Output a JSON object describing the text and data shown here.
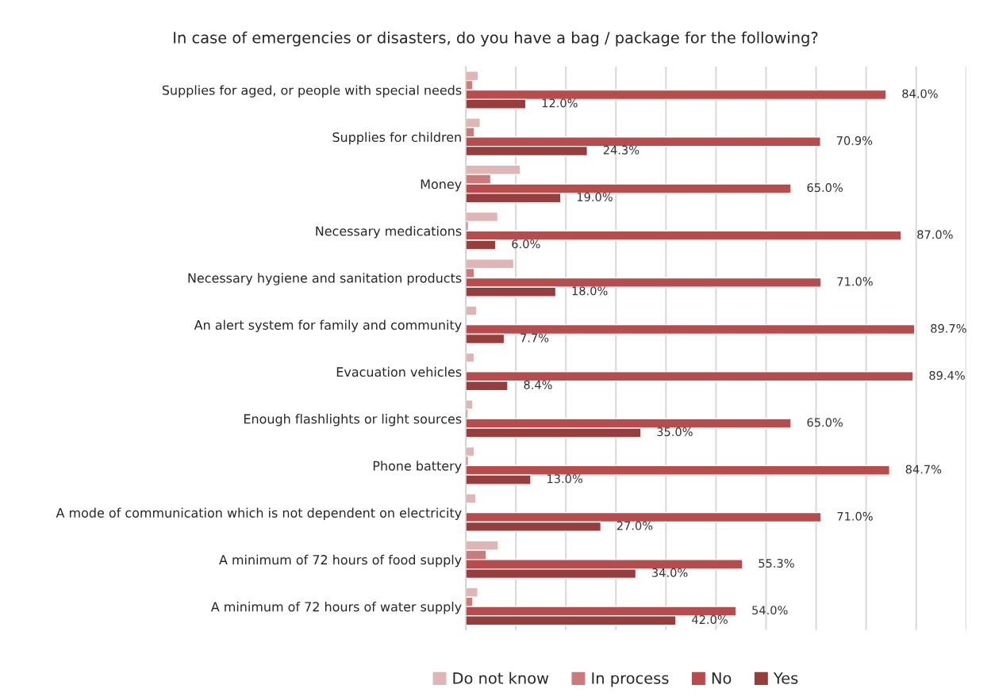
{
  "chart_data": {
    "type": "bar",
    "orientation": "horizontal",
    "title": "In case of emergencies or disasters, do you have a bag / package for the following?",
    "categories": [
      "Supplies for aged, or people with special needs",
      "Supplies for children",
      "Money",
      "Necessary medications",
      "Necessary hygiene and sanitation products",
      "An alert system for family and community",
      "Evacuation vehicles",
      "Enough flashlights or light sources",
      "Phone battery",
      "A mode of communication which is not dependent on electricity",
      "A minimum of 72 hours of food supply",
      "A minimum of 72 hours of water supply"
    ],
    "series": [
      {
        "name": "Do not know",
        "color": "#e0b5b5",
        "values": [
          2.5,
          2.9,
          10.9,
          6.4,
          9.6,
          2.2,
          1.7,
          1.4,
          1.7,
          2.0,
          6.5,
          2.4
        ]
      },
      {
        "name": "In process",
        "color": "#cc7b7b",
        "values": [
          1.4,
          1.7,
          5.0,
          0.5,
          1.7,
          null,
          null,
          0.4,
          0.5,
          null,
          4.1,
          1.4
        ]
      },
      {
        "name": "No",
        "color": "#b84b4b",
        "values": [
          84.0,
          70.9,
          65.0,
          87.0,
          71.0,
          89.7,
          89.4,
          65.0,
          84.7,
          71.0,
          55.3,
          54.0
        ],
        "value_labels": [
          "84.0%",
          "70.9%",
          "65.0%",
          "87.0%",
          "71.0%",
          "89.7%",
          "89.4%",
          "65.0%",
          "84.7%",
          "71.0%",
          "55.3%",
          "54.0%"
        ]
      },
      {
        "name": "Yes",
        "color": "#983d3d",
        "values": [
          12.0,
          24.3,
          19.0,
          6.0,
          18.0,
          7.7,
          8.4,
          35.0,
          13.0,
          27.0,
          34.0,
          42.0
        ],
        "value_labels": [
          "12.0%",
          "24.3%",
          "19.0%",
          "6.0%",
          "18.0%",
          "7.7%",
          "8.4%",
          "35.0%",
          "13.0%",
          "27.0%",
          "34.0%",
          "42.0%"
        ]
      }
    ],
    "xlim": [
      0,
      100
    ],
    "xticks": [
      {
        "value": 0,
        "label": null
      },
      {
        "value": 10,
        "label": null
      },
      {
        "value": 20,
        "label": null
      },
      {
        "value": 30,
        "label": null
      },
      {
        "value": 40,
        "label": null
      },
      {
        "value": 50,
        "label": null
      },
      {
        "value": 60,
        "label": null
      },
      {
        "value": 70,
        "label": null
      },
      {
        "value": 80,
        "label": null
      },
      {
        "value": 90,
        "label": null
      },
      {
        "value": 100,
        "label": null
      }
    ],
    "grid": "x",
    "legend": "bottom"
  }
}
